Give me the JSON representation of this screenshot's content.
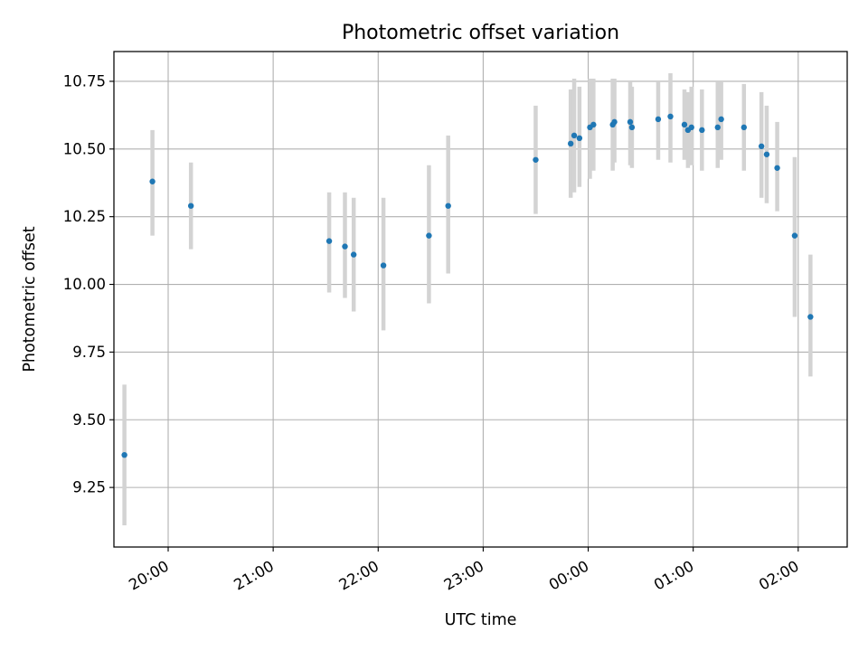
{
  "chart_data": {
    "type": "scatter",
    "title": "Photometric offset variation",
    "xlabel": "UTC time",
    "ylabel": "Photometric offset",
    "x_ticks": [
      "20:00",
      "21:00",
      "22:00",
      "23:00",
      "00:00",
      "01:00",
      "02:00"
    ],
    "y_ticks": [
      "9.25",
      "9.50",
      "9.75",
      "10.00",
      "10.25",
      "10.50",
      "10.75"
    ],
    "x_unit": "UTC time (clock time on the x axis)",
    "xlim": [
      "19:29",
      "02:28"
    ],
    "ylim": [
      9.03,
      10.86
    ],
    "grid": true,
    "marker_color": "#1f77b4",
    "errorbar_color": "#d3d3d3",
    "points": [
      {
        "x": "19:35",
        "y": 9.37,
        "ylo": 9.11,
        "yhi": 9.63
      },
      {
        "x": "19:51",
        "y": 10.38,
        "ylo": 10.18,
        "yhi": 10.57
      },
      {
        "x": "20:13",
        "y": 10.29,
        "ylo": 10.13,
        "yhi": 10.45
      },
      {
        "x": "21:32",
        "y": 10.16,
        "ylo": 9.97,
        "yhi": 10.34
      },
      {
        "x": "21:41",
        "y": 10.14,
        "ylo": 9.95,
        "yhi": 10.34
      },
      {
        "x": "21:46",
        "y": 10.11,
        "ylo": 9.9,
        "yhi": 10.32
      },
      {
        "x": "22:03",
        "y": 10.07,
        "ylo": 9.83,
        "yhi": 10.32
      },
      {
        "x": "22:29",
        "y": 10.18,
        "ylo": 9.93,
        "yhi": 10.44
      },
      {
        "x": "22:40",
        "y": 10.29,
        "ylo": 10.04,
        "yhi": 10.55
      },
      {
        "x": "23:30",
        "y": 10.46,
        "ylo": 10.26,
        "yhi": 10.66
      },
      {
        "x": "23:50",
        "y": 10.52,
        "ylo": 10.32,
        "yhi": 10.72
      },
      {
        "x": "23:52",
        "y": 10.55,
        "ylo": 10.34,
        "yhi": 10.76
      },
      {
        "x": "23:55",
        "y": 10.54,
        "ylo": 10.36,
        "yhi": 10.73
      },
      {
        "x": "00:01",
        "y": 10.58,
        "ylo": 10.39,
        "yhi": 10.76
      },
      {
        "x": "00:03",
        "y": 10.59,
        "ylo": 10.42,
        "yhi": 10.76
      },
      {
        "x": "00:14",
        "y": 10.59,
        "ylo": 10.42,
        "yhi": 10.76
      },
      {
        "x": "00:15",
        "y": 10.6,
        "ylo": 10.45,
        "yhi": 10.76
      },
      {
        "x": "00:24",
        "y": 10.6,
        "ylo": 10.44,
        "yhi": 10.75
      },
      {
        "x": "00:25",
        "y": 10.58,
        "ylo": 10.43,
        "yhi": 10.73
      },
      {
        "x": "00:40",
        "y": 10.61,
        "ylo": 10.46,
        "yhi": 10.75
      },
      {
        "x": "00:47",
        "y": 10.62,
        "ylo": 10.45,
        "yhi": 10.78
      },
      {
        "x": "00:55",
        "y": 10.59,
        "ylo": 10.46,
        "yhi": 10.72
      },
      {
        "x": "00:57",
        "y": 10.57,
        "ylo": 10.43,
        "yhi": 10.71
      },
      {
        "x": "00:59",
        "y": 10.58,
        "ylo": 10.44,
        "yhi": 10.73
      },
      {
        "x": "01:05",
        "y": 10.57,
        "ylo": 10.42,
        "yhi": 10.72
      },
      {
        "x": "01:14",
        "y": 10.58,
        "ylo": 10.43,
        "yhi": 10.75
      },
      {
        "x": "01:16",
        "y": 10.61,
        "ylo": 10.46,
        "yhi": 10.75
      },
      {
        "x": "01:29",
        "y": 10.58,
        "ylo": 10.42,
        "yhi": 10.74
      },
      {
        "x": "01:39",
        "y": 10.51,
        "ylo": 10.32,
        "yhi": 10.71
      },
      {
        "x": "01:42",
        "y": 10.48,
        "ylo": 10.3,
        "yhi": 10.66
      },
      {
        "x": "01:48",
        "y": 10.43,
        "ylo": 10.27,
        "yhi": 10.6
      },
      {
        "x": "01:58",
        "y": 10.18,
        "ylo": 9.88,
        "yhi": 10.47
      },
      {
        "x": "02:07",
        "y": 9.88,
        "ylo": 9.66,
        "yhi": 10.11
      }
    ]
  }
}
